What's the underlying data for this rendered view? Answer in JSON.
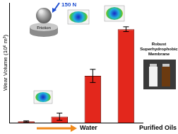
{
  "chart_data": {
    "type": "bar",
    "y_label": "Wear Volume (10⁶ m³)",
    "categories": [
      null,
      null,
      null,
      null
    ],
    "values": [
      0.1,
      0.5,
      3.9,
      7.8
    ],
    "errors": [
      0.05,
      0.3,
      0.55,
      0.2
    ],
    "color": "#e3271c",
    "ylim": [
      0,
      10
    ],
    "yticks": [],
    "tick_labels": false,
    "grid": false,
    "annotations": [
      "Water",
      "Purified Oils",
      "150 N",
      "Friction",
      "Robust Superhydrophobic Membrane"
    ]
  }
}
